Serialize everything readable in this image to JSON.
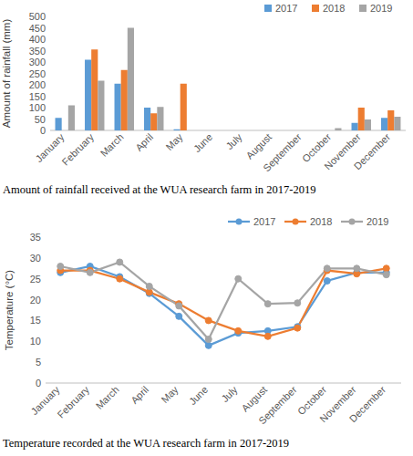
{
  "chart_data": [
    {
      "type": "bar",
      "title": "Amount of rainfall received at the WUA research farm in 2017-2019",
      "y_label": "Amount of rainfall (mm)",
      "categories": [
        "January",
        "February",
        "March",
        "April",
        "May",
        "June",
        "July",
        "August",
        "September",
        "October",
        "November",
        "December"
      ],
      "series": [
        {
          "name": "2017",
          "color": "#5b9bd5",
          "values": [
            55,
            310,
            205,
            100,
            5,
            0,
            0,
            0,
            0,
            0,
            33,
            55
          ]
        },
        {
          "name": "2018",
          "color": "#ed7d31",
          "values": [
            0,
            355,
            265,
            75,
            205,
            0,
            0,
            0,
            0,
            0,
            100,
            88
          ]
        },
        {
          "name": "2019",
          "color": "#a5a5a5",
          "values": [
            110,
            218,
            450,
            103,
            0,
            0,
            0,
            0,
            0,
            10,
            48,
            60
          ]
        }
      ],
      "ylim": [
        0,
        500
      ],
      "yticks": [
        0,
        50,
        100,
        150,
        200,
        250,
        300,
        350,
        400,
        450,
        500
      ],
      "grid": false,
      "legend": "top"
    },
    {
      "type": "line",
      "title": "Temperature recorded at the WUA research farm in 2017-2019",
      "y_label": "Temperature (°C)",
      "categories": [
        "January",
        "February",
        "March",
        "April",
        "May",
        "June",
        "July",
        "August",
        "September",
        "October",
        "November",
        "December"
      ],
      "series": [
        {
          "name": "2017",
          "color": "#5b9bd5",
          "marker": "circle",
          "values": [
            26.5,
            28,
            25.5,
            21.5,
            16,
            9,
            12,
            12.5,
            13.5,
            24.5,
            26.5,
            26.5
          ]
        },
        {
          "name": "2018",
          "color": "#ed7d31",
          "marker": "circle",
          "values": [
            27,
            27,
            25,
            21.8,
            19,
            15,
            12.5,
            11.2,
            13.2,
            27,
            26.2,
            27.5
          ]
        },
        {
          "name": "2019",
          "color": "#a5a5a5",
          "marker": "circle",
          "values": [
            28,
            26.5,
            29,
            23.2,
            18.5,
            10.5,
            25,
            19,
            19.2,
            27.5,
            27.5,
            26
          ]
        }
      ],
      "ylim": [
        0,
        35
      ],
      "yticks": [
        0,
        5,
        10,
        15,
        20,
        25,
        30,
        35
      ],
      "grid": false,
      "legend": "top"
    }
  ]
}
